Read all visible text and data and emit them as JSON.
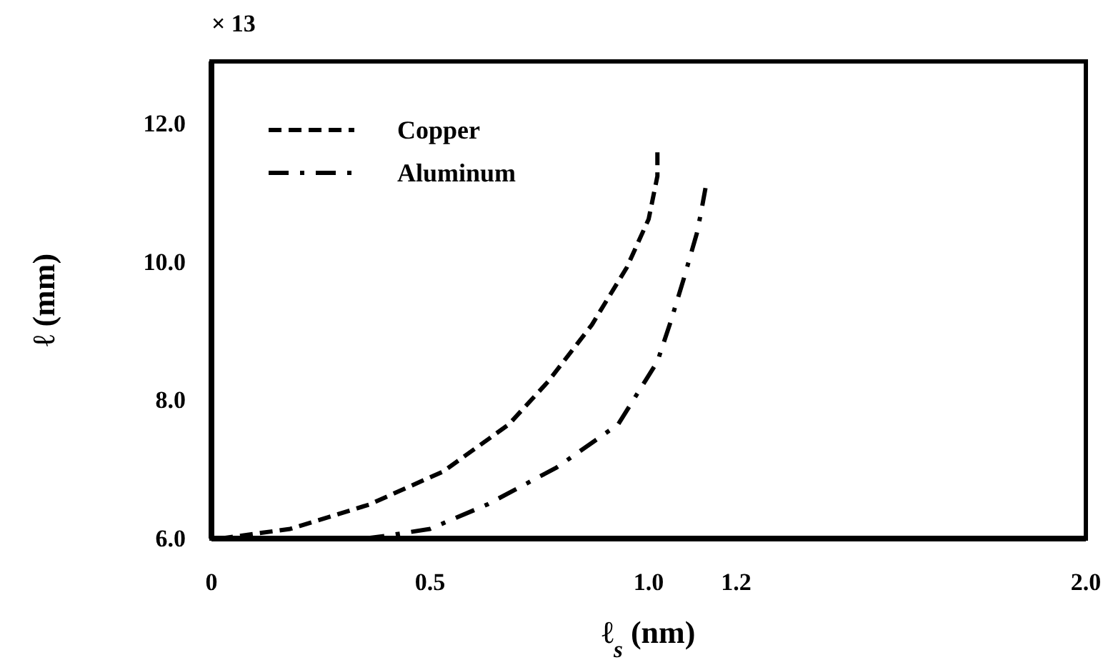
{
  "chart_data": {
    "type": "line",
    "xlabel": "ℓ$_{s}$ (nm)",
    "ylabel": "ℓ (mm)",
    "annotations": [
      "× 13"
    ],
    "xlim": [
      0,
      2.0
    ],
    "xticks": [
      0,
      0.5,
      {
        "value": 1.0,
        "label": "1.0"
      },
      1.2,
      {
        "value": 2.0,
        "label": "2.0"
      }
    ],
    "ylim": [
      6,
      12.9
    ],
    "yticks": [
      {
        "value": 6,
        "label": "6.0"
      },
      {
        "value": 8,
        "label": "8.0"
      },
      {
        "value": 10,
        "label": "10.0"
      },
      {
        "value": 12,
        "label": "12.0"
      }
    ],
    "legend": "top left",
    "grid": false,
    "series": [
      {
        "name": "Copper",
        "color": "#000000",
        "line_style": "dashed",
        "x": [
          0.02,
          0.18,
          0.36,
          0.53,
          0.68,
          0.77,
          0.87,
          0.95,
          1.0,
          1.02,
          1.02
        ],
        "values": [
          6.0,
          6.14,
          6.49,
          6.97,
          7.65,
          8.27,
          9.09,
          9.92,
          10.62,
          11.24,
          11.65
        ]
      },
      {
        "name": "Aluminum",
        "color": "#000000",
        "line_style": "dashdot",
        "x": [
          0.35,
          0.4,
          0.5,
          0.63,
          0.79,
          0.93,
          1.02,
          1.05,
          1.08,
          1.11,
          1.12,
          1.13
        ],
        "values": [
          6.0,
          6.04,
          6.14,
          6.49,
          7.03,
          7.65,
          8.56,
          9.13,
          9.75,
          10.41,
          10.72,
          11.07
        ]
      }
    ]
  }
}
